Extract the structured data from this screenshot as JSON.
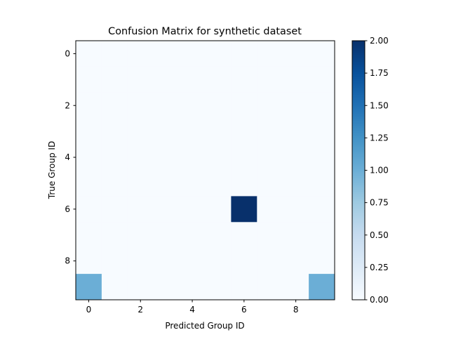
{
  "chart_data": {
    "type": "heatmap",
    "title": "Confusion Matrix for synthetic dataset",
    "xlabel": "Predicted Group ID",
    "ylabel": "True Group ID",
    "rows": 10,
    "cols": 10,
    "x_ticks": [
      "0",
      "2",
      "4",
      "6",
      "8"
    ],
    "y_ticks": [
      "0",
      "2",
      "4",
      "6",
      "8"
    ],
    "cells": [
      {
        "row": 6,
        "col": 6,
        "value": 2
      },
      {
        "row": 9,
        "col": 0,
        "value": 1
      },
      {
        "row": 9,
        "col": 9,
        "value": 1
      }
    ],
    "default_value": 0,
    "colorbar": {
      "min": 0,
      "max": 2,
      "ticks": [
        "0.00",
        "0.25",
        "0.50",
        "0.75",
        "1.00",
        "1.25",
        "1.50",
        "1.75",
        "2.00"
      ],
      "colormap": [
        "#f7fbff",
        "#deebf7",
        "#c6dbef",
        "#9ecae1",
        "#6baed6",
        "#4292c6",
        "#2171b5",
        "#08519c",
        "#08306b"
      ]
    }
  }
}
